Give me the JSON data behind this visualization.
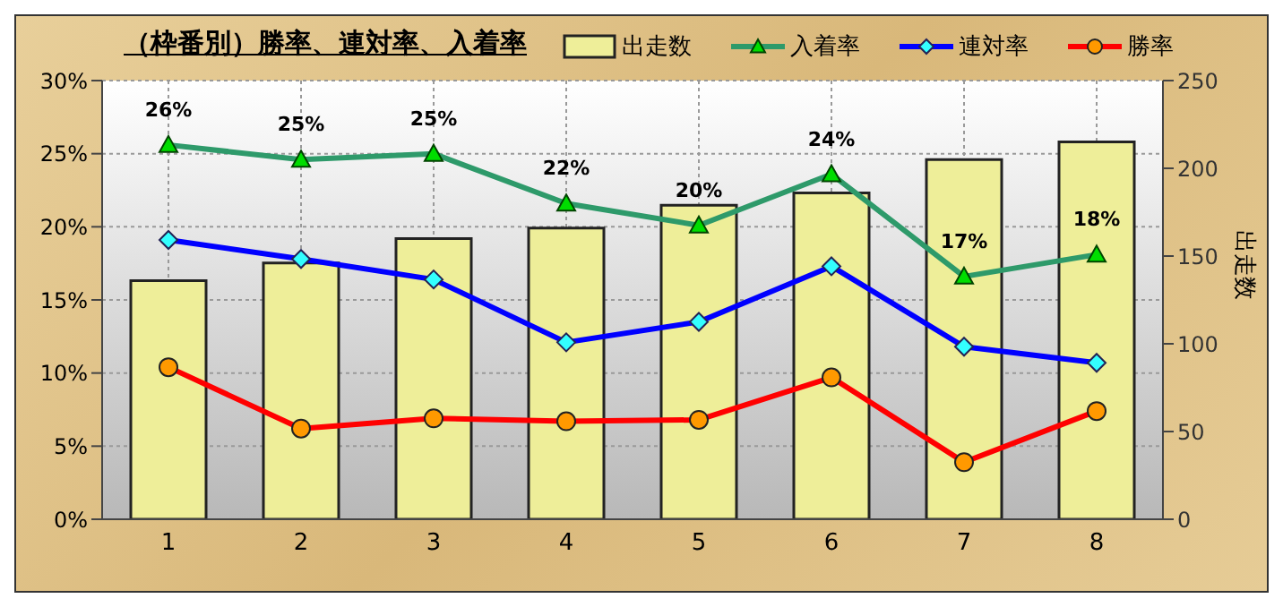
{
  "chart_data": {
    "type": "bar",
    "title": "（枠番別）勝率、連対率、入着率",
    "y2label": "出走数",
    "categories": [
      "1",
      "2",
      "3",
      "4",
      "5",
      "6",
      "7",
      "8"
    ],
    "series": [
      {
        "name": "出走数",
        "axis": "y2",
        "color": "#eeee99",
        "values": [
          136,
          146,
          160,
          166,
          179,
          186,
          205,
          215
        ]
      },
      {
        "name": "入着率",
        "type": "line",
        "color": "#2e9a6a",
        "marker": "triangle",
        "values": [
          25.6,
          24.6,
          25.0,
          21.6,
          20.1,
          23.6,
          16.6,
          18.1
        ],
        "value_labels": [
          "26%",
          "25%",
          "25%",
          "22%",
          "20%",
          "24%",
          "17%",
          "18%"
        ]
      },
      {
        "name": "連対率",
        "type": "line",
        "color": "#0000ff",
        "marker": "diamond",
        "values": [
          19.1,
          17.8,
          16.4,
          12.1,
          13.5,
          17.3,
          11.8,
          10.7
        ]
      },
      {
        "name": "勝率",
        "type": "line",
        "color": "#ff0000",
        "marker": "circle",
        "values": [
          10.4,
          6.2,
          6.9,
          6.7,
          6.8,
          9.7,
          3.9,
          7.4
        ]
      }
    ],
    "ylim": [
      0,
      30
    ],
    "yticks": [
      {
        "value": 0,
        "label": "0%"
      },
      {
        "value": 5,
        "label": "5%"
      },
      {
        "value": 10,
        "label": "10%"
      },
      {
        "value": 15,
        "label": "15%"
      },
      {
        "value": 20,
        "label": "20%"
      },
      {
        "value": 25,
        "label": "25%"
      },
      {
        "value": 30,
        "label": "30%"
      }
    ],
    "y2lim": [
      0,
      250
    ],
    "y2ticks": [
      0,
      50,
      100,
      150,
      200,
      250
    ],
    "grid": true,
    "legend": "top right"
  }
}
